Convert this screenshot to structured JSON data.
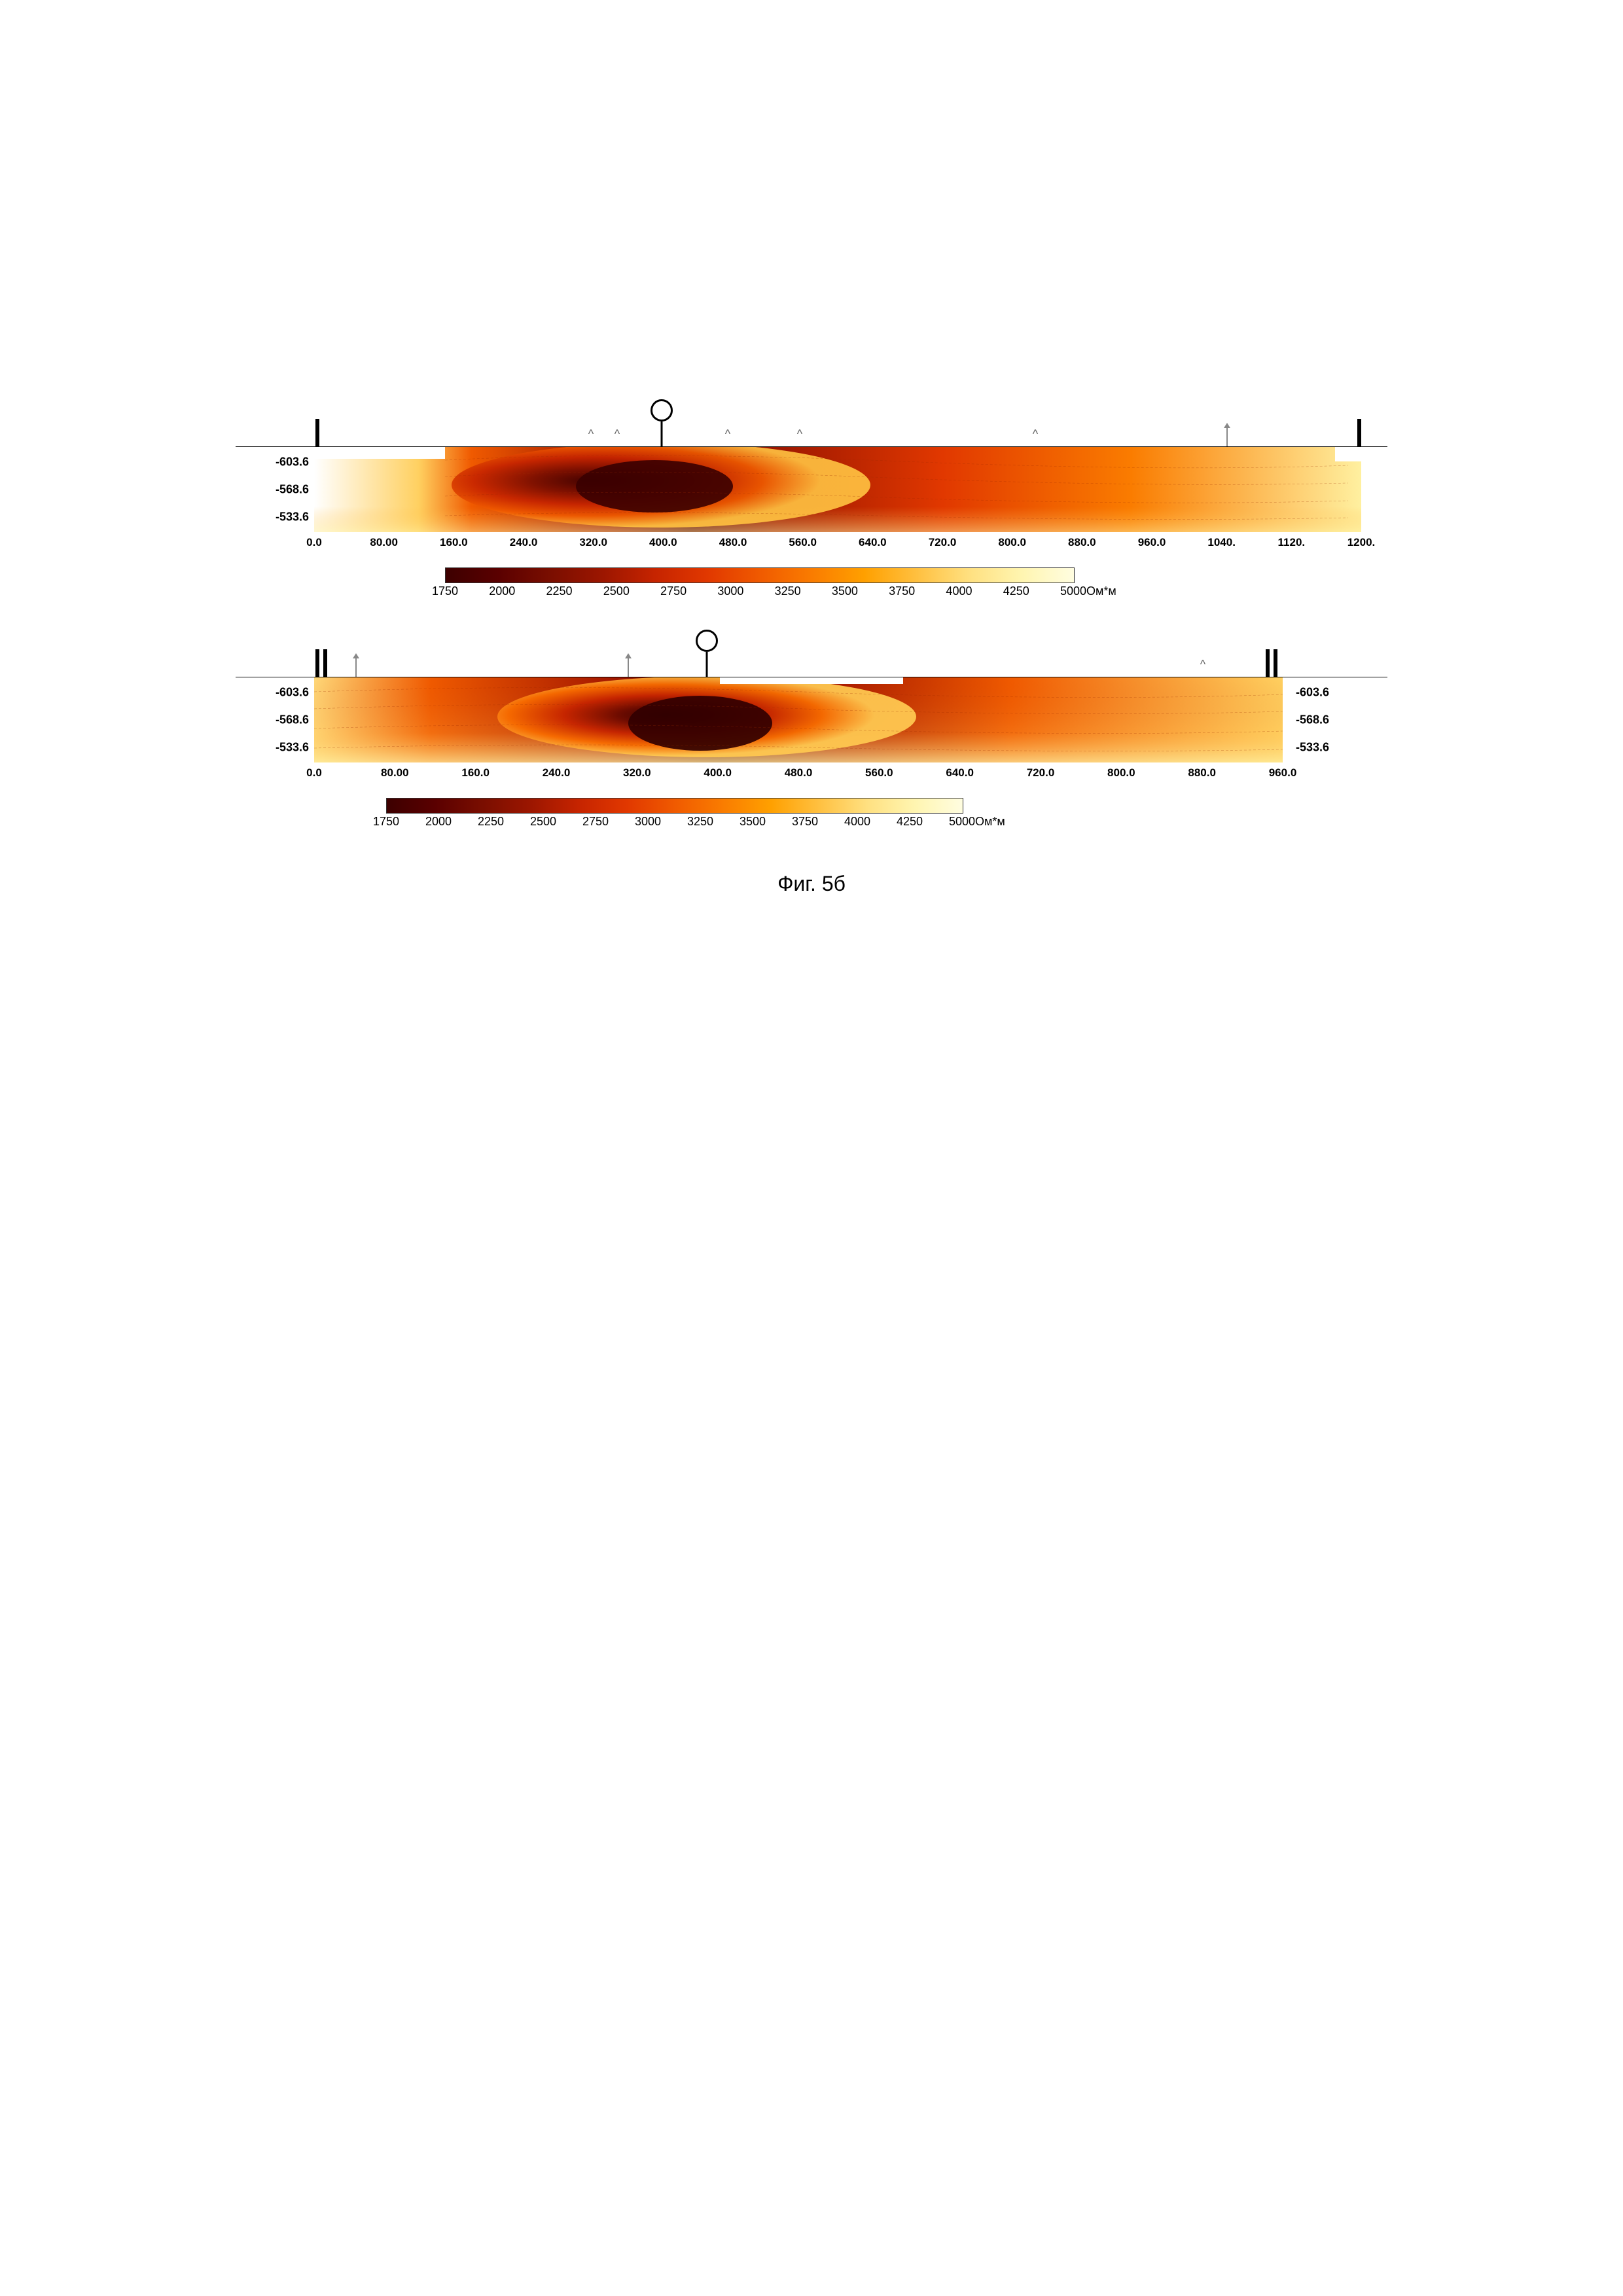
{
  "caption": "Фиг. 5б",
  "colorbar": {
    "ticks": [
      1750,
      2000,
      2250,
      2500,
      2750,
      3000,
      3250,
      3500,
      3750,
      4000,
      4250,
      5000
    ],
    "unit": "Ом*м",
    "colors": [
      "#3d0000",
      "#5a0000",
      "#7a0e00",
      "#9c1600",
      "#c62400",
      "#e13800",
      "#f05a00",
      "#fa7c00",
      "#ffa000",
      "#ffc040",
      "#ffe080",
      "#fff5b0",
      "#fffde0"
    ]
  },
  "profiles": [
    {
      "id": "top",
      "xticks": [
        "0.0",
        "80.00",
        "160.0",
        "240.0",
        "320.0",
        "400.0",
        "480.0",
        "560.0",
        "640.0",
        "720.0",
        "800.0",
        "880.0",
        "960.0",
        "1040.",
        "1120.",
        "1200."
      ],
      "yticks": [
        "-603.6",
        "-568.6",
        "-533.6"
      ],
      "xmax": 1200,
      "yticks_right": false,
      "annotations": {
        "bars_left": [
          0
        ],
        "bars_right": [
          1198
        ],
        "carets": [
          318,
          348,
          475,
          558,
          830
        ],
        "arrows": [
          1050
        ],
        "circle": 400
      }
    },
    {
      "id": "bottom",
      "xticks": [
        "0.0",
        "80.00",
        "160.0",
        "240.0",
        "320.0",
        "400.0",
        "480.0",
        "560.0",
        "640.0",
        "720.0",
        "800.0",
        "880.0",
        "960.0"
      ],
      "yticks": [
        "-603.6",
        "-568.6",
        "-533.6"
      ],
      "xmax": 980,
      "yticks_right": true,
      "annotations": {
        "bars_left_double": [
          0,
          10
        ],
        "bars_right_double": [
          968,
          978
        ],
        "carets": [
          905
        ],
        "arrows": [
          42,
          320
        ],
        "circle": 400
      }
    }
  ],
  "style": {
    "bg": "#ffffff",
    "axis_font": 17,
    "caption_font": 32
  }
}
